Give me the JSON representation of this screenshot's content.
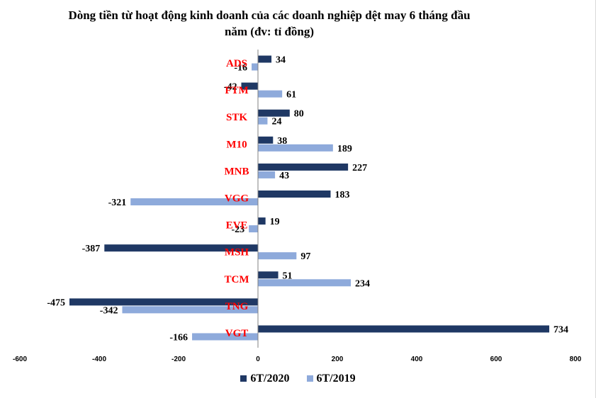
{
  "chart_data": {
    "type": "bar",
    "orientation": "horizontal",
    "title": "Dòng tiền từ hoạt động kinh doanh của các doanh nghiệp dệt may 6 tháng đầu năm (đv: tỉ đồng)",
    "categories": [
      "ADS",
      "FTM",
      "STK",
      "M10",
      "MNB",
      "VGG",
      "EVE",
      "MSH",
      "TCM",
      "TNG",
      "VGT"
    ],
    "series": [
      {
        "name": "6T/2020",
        "color": "#1f3864",
        "values": [
          34,
          -42,
          80,
          38,
          227,
          183,
          19,
          -387,
          51,
          -475,
          734
        ]
      },
      {
        "name": "6T/2019",
        "color": "#8eaadb",
        "values": [
          -16,
          61,
          24,
          189,
          43,
          -321,
          -23,
          97,
          234,
          -342,
          -166
        ]
      }
    ],
    "xlim": [
      -600,
      800
    ],
    "x_ticks": [
      -600,
      -400,
      -200,
      0,
      200,
      400,
      600,
      800
    ],
    "category_label_color": "#ff0000",
    "legend_position": "bottom",
    "grid": false
  }
}
